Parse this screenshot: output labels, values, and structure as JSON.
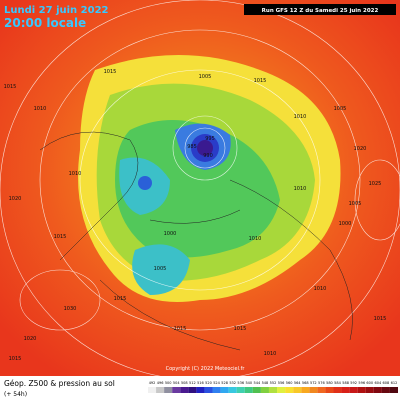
{
  "header": {
    "date": "Lundi 27 juin 2022",
    "time": "20:00 locale",
    "run": "Run GFS 12 Z du Samedi 25 juin 2022"
  },
  "footer": {
    "field": "Géop. Z500 & pression au sol",
    "lead": "(+ 54h)",
    "copyright": "Copyright (C) 2022 Meteociel.fr"
  },
  "colorbar": {
    "ticks": [
      492,
      496,
      500,
      504,
      508,
      512,
      516,
      520,
      524,
      528,
      532,
      536,
      540,
      544,
      548,
      552,
      556,
      560,
      564,
      568,
      572,
      576,
      580,
      584,
      588,
      592,
      596,
      600,
      604,
      608,
      612
    ]
  },
  "map": {
    "labels": [
      "1015",
      "1010",
      "1015",
      "1005",
      "1015",
      "1010",
      "1005",
      "1020",
      "1010",
      "1015",
      "995",
      "990",
      "985",
      "1000",
      "1005",
      "1010",
      "1015",
      "1020",
      "1025",
      "1030",
      "1015",
      "1010",
      "1005",
      "1000",
      "1010",
      "1015",
      "1020",
      "1015",
      "1010",
      "1015"
    ]
  }
}
